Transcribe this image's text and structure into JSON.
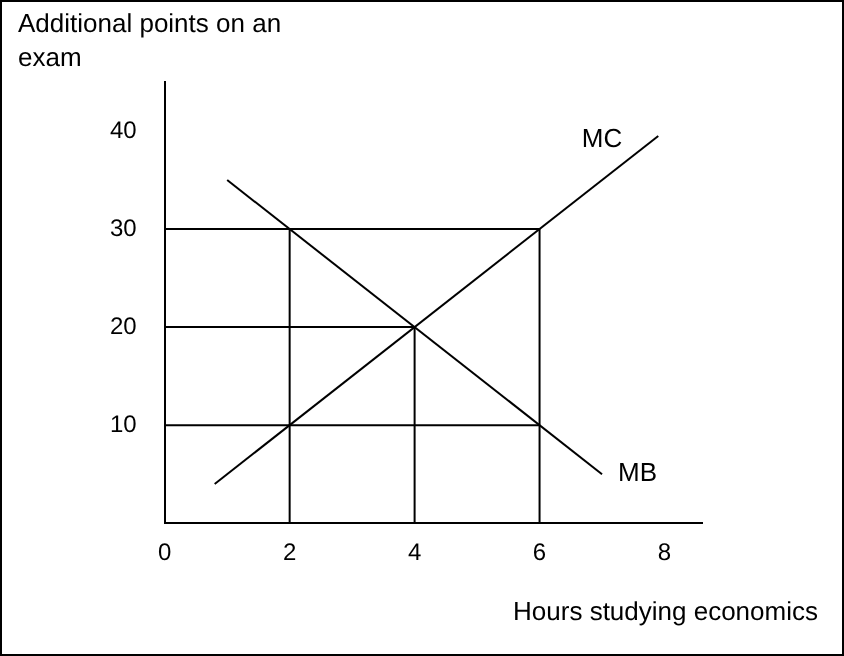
{
  "chart_data": {
    "type": "line",
    "xlabel": "Hours studying economics",
    "ylabel": "Additional points on an exam",
    "xlim": [
      0,
      8.6
    ],
    "ylim": [
      0,
      45
    ],
    "xticks": [
      0,
      2,
      4,
      6,
      8
    ],
    "yticks": [
      10,
      20,
      30,
      40
    ],
    "grid": false,
    "legend": false,
    "marker": "none",
    "line_style": "solid",
    "series": [
      {
        "name": "MC",
        "color": "#000000",
        "x": [
          0.8,
          7.9
        ],
        "values": [
          4,
          39.5
        ]
      },
      {
        "name": "MB",
        "color": "#000000",
        "x": [
          1,
          7
        ],
        "values": [
          35,
          5
        ]
      },
      {
        "color": "#000000",
        "x": [
          0,
          6
        ],
        "values": [
          30,
          30
        ]
      },
      {
        "color": "#000000",
        "x": [
          0,
          4
        ],
        "values": [
          20,
          20
        ]
      },
      {
        "color": "#000000",
        "x": [
          0,
          6
        ],
        "values": [
          10,
          10
        ]
      },
      {
        "color": "#000000",
        "x": [
          2,
          2
        ],
        "values": [
          0,
          30
        ]
      },
      {
        "color": "#000000",
        "x": [
          4,
          4
        ],
        "values": [
          0,
          20
        ]
      },
      {
        "color": "#000000",
        "x": [
          6,
          6
        ],
        "values": [
          0,
          30
        ]
      }
    ]
  }
}
